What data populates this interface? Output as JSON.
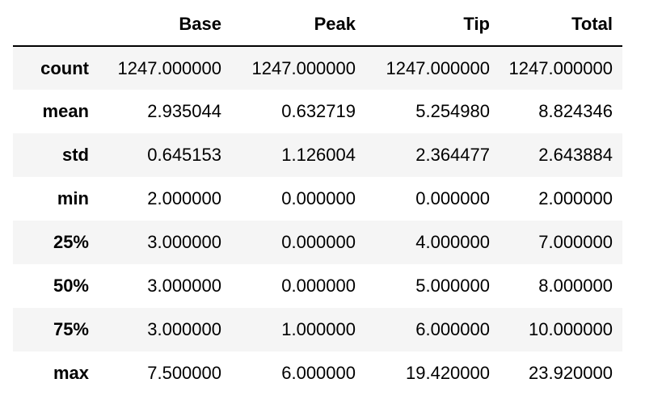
{
  "table": {
    "columns": [
      "Base",
      "Peak",
      "Tip",
      "Total"
    ],
    "rows": [
      {
        "label": "count",
        "values": [
          "1247.000000",
          "1247.000000",
          "1247.000000",
          "1247.000000"
        ]
      },
      {
        "label": "mean",
        "values": [
          "2.935044",
          "0.632719",
          "5.254980",
          "8.824346"
        ]
      },
      {
        "label": "std",
        "values": [
          "0.645153",
          "1.126004",
          "2.364477",
          "2.643884"
        ]
      },
      {
        "label": "min",
        "values": [
          "2.000000",
          "0.000000",
          "0.000000",
          "2.000000"
        ]
      },
      {
        "label": "25%",
        "values": [
          "3.000000",
          "0.000000",
          "4.000000",
          "7.000000"
        ]
      },
      {
        "label": "50%",
        "values": [
          "3.000000",
          "0.000000",
          "5.000000",
          "8.000000"
        ]
      },
      {
        "label": "75%",
        "values": [
          "3.000000",
          "1.000000",
          "6.000000",
          "10.000000"
        ]
      },
      {
        "label": "max",
        "values": [
          "7.500000",
          "6.000000",
          "19.420000",
          "23.920000"
        ]
      }
    ]
  }
}
